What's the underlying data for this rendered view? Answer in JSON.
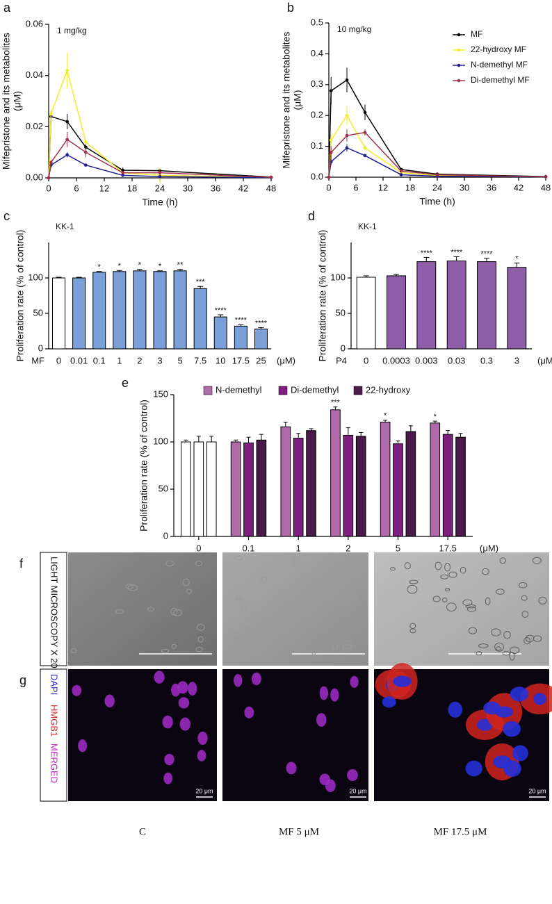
{
  "chart_data": [
    {
      "type": "line",
      "panel": "a",
      "annotation": "1 mg/kg",
      "ylabel": "Mifepristone and its metabolites",
      "ylabel_unit": "(μM)",
      "xlabel": "Time (h)",
      "x": [
        0,
        0.5,
        4,
        8,
        16,
        24,
        48
      ],
      "xlim": [
        0,
        48
      ],
      "xticks": [
        0,
        6,
        12,
        18,
        24,
        30,
        36,
        42,
        48
      ],
      "ylim": [
        0,
        0.06
      ],
      "yticks": [
        {
          "value": 0,
          "label": "0.00"
        },
        {
          "value": 0.02,
          "label": "0.02"
        },
        {
          "value": 0.04,
          "label": "0.04"
        },
        {
          "value": 0.06,
          "label": "0.06"
        }
      ],
      "series": [
        {
          "name": "MF",
          "color": "#000000",
          "values": [
            0,
            0.024,
            0.022,
            0.012,
            0.003,
            0.0028,
            0.0003
          ],
          "errors": [
            0,
            0.001,
            0.003,
            0.002,
            0.001,
            0.0005,
            0.0002
          ]
        },
        {
          "name": "22-hydroxy MF",
          "color": "#f2ec2a",
          "values": [
            0,
            0.025,
            0.042,
            0.014,
            0.002,
            0.001,
            0.0002
          ],
          "errors": [
            0,
            0.002,
            0.007,
            0.001,
            0.0005,
            0.003,
            0.0001
          ]
        },
        {
          "name": "N-demethyl MF",
          "color": "#1f1f8f",
          "values": [
            0,
            0.005,
            0.009,
            0.005,
            0.001,
            0.0005,
            0.0001
          ],
          "errors": [
            0,
            0.001,
            0.001,
            0.0005,
            0.0003,
            0.0002,
            0.0001
          ]
        },
        {
          "name": "Di-demethyl MF",
          "color": "#a0304a",
          "values": [
            0,
            0.006,
            0.015,
            0.01,
            0.002,
            0.002,
            0.0002
          ],
          "errors": [
            0,
            0.001,
            0.003,
            0.002,
            0.0005,
            0.001,
            0.0001
          ]
        }
      ]
    },
    {
      "type": "line",
      "panel": "b",
      "annotation": "10 mg/kg",
      "ylabel": "Mifepristone and its metabolites",
      "ylabel_unit": "(μM)",
      "xlabel": "Time (h)",
      "legend": true,
      "x": [
        0,
        0.5,
        4,
        8,
        16,
        24,
        48
      ],
      "xlim": [
        0,
        48
      ],
      "xticks": [
        0,
        6,
        12,
        18,
        24,
        30,
        36,
        42,
        48
      ],
      "ylim": [
        0,
        0.5
      ],
      "yticks": [
        {
          "value": 0,
          "label": "0.0"
        },
        0.1,
        0.2,
        0.3,
        0.4,
        0.5
      ],
      "series": [
        {
          "name": "MF",
          "color": "#000000",
          "values": [
            0,
            0.28,
            0.315,
            0.21,
            0.025,
            0.01,
            0.002
          ],
          "errors": [
            0,
            0.045,
            0.04,
            0.025,
            0.005,
            0.003,
            0.001
          ]
        },
        {
          "name": "22-hydroxy MF",
          "color": "#f2ec2a",
          "values": [
            0,
            0.12,
            0.2,
            0.095,
            0.015,
            0.005,
            0.001
          ],
          "errors": [
            0,
            0.02,
            0.03,
            0.008,
            0.003,
            0.002,
            0.001
          ]
        },
        {
          "name": "N-demethyl MF",
          "color": "#1f1f8f",
          "values": [
            0,
            0.05,
            0.095,
            0.07,
            0.008,
            0.003,
            0.001
          ],
          "errors": [
            0,
            0.01,
            0.012,
            0.005,
            0.002,
            0.001,
            0.0005
          ]
        },
        {
          "name": "Di-demethyl MF",
          "color": "#a0304a",
          "values": [
            0,
            0.08,
            0.135,
            0.145,
            0.02,
            0.008,
            0.001
          ],
          "errors": [
            0,
            0.02,
            0.02,
            0.01,
            0.004,
            0.002,
            0.001
          ]
        }
      ]
    },
    {
      "type": "bar",
      "panel": "c",
      "annotation": "KK-1",
      "ylabel": "Proliferation rate (% of control)",
      "x_prefix": "MF",
      "x_unit": "(μM)",
      "categories": [
        "0",
        "0.01",
        "0.1",
        "1",
        "2",
        "3",
        "5",
        "7.5",
        "10",
        "17.5",
        "25"
      ],
      "values": [
        100,
        100,
        108,
        109,
        110,
        109,
        110,
        85,
        45,
        32,
        28
      ],
      "errors": [
        1,
        1,
        1,
        1.5,
        2,
        1,
        2,
        3,
        3,
        2,
        2
      ],
      "significance": [
        null,
        null,
        "*",
        "*",
        "*",
        "*",
        "**",
        "***",
        "****",
        "****",
        "****"
      ],
      "color": "#7b9fd9",
      "control_color": "#ffffff",
      "ylim": [
        0,
        150
      ],
      "yticks": [
        0,
        50,
        100
      ]
    },
    {
      "type": "bar",
      "panel": "d",
      "annotation": "KK-1",
      "ylabel": "Proliferation rate (% of control)",
      "x_prefix": "P4",
      "x_unit": "(μM)",
      "categories": [
        "0",
        "0.0003",
        "0.003",
        "0.03",
        "0.3",
        "3"
      ],
      "values": [
        101,
        103,
        123,
        124,
        123,
        115
      ],
      "errors": [
        2,
        2,
        6,
        6,
        5,
        6
      ],
      "significance": [
        null,
        null,
        "****",
        "****",
        "****",
        "*"
      ],
      "color": "#8e5ea8",
      "control_color": "#ffffff",
      "ylim": [
        0,
        150
      ],
      "yticks": [
        0,
        50,
        100
      ]
    },
    {
      "type": "grouped_bar",
      "panel": "e",
      "ylabel": "Proliferation rate (% of control)",
      "x_unit": "(μM)",
      "legend": true,
      "categories": [
        "0",
        "0.1",
        "1",
        "2",
        "5",
        "17.5"
      ],
      "control_color": "#ffffff",
      "ylim": [
        0,
        150
      ],
      "yticks": [
        0,
        50,
        100,
        150
      ],
      "series": [
        {
          "name": "N-demethyl",
          "color": "#b06aaa",
          "values": [
            100,
            100,
            116,
            134,
            121,
            120
          ],
          "errors": [
            2,
            2,
            5,
            3,
            2,
            2
          ],
          "significance": [
            null,
            null,
            null,
            "***",
            "*",
            "*"
          ]
        },
        {
          "name": "Di-demethyl",
          "color": "#7d1f7f",
          "values": [
            100,
            99,
            104,
            107,
            98,
            108
          ],
          "errors": [
            6,
            6,
            5,
            8,
            3,
            4
          ],
          "significance": [
            null,
            null,
            null,
            null,
            null,
            null
          ]
        },
        {
          "name": "22-hydroxy",
          "color": "#4a1a4a",
          "values": [
            100,
            102,
            112,
            106,
            111,
            105
          ],
          "errors": [
            6,
            6,
            2,
            4,
            6,
            4
          ],
          "significance": [
            null,
            null,
            null,
            null,
            null,
            null
          ]
        }
      ]
    }
  ],
  "images": {
    "f": {
      "panel": "f",
      "label": "LIGHT MICROSCOPY X 20"
    },
    "g": {
      "panel": "g",
      "labels": [
        "DAPI",
        "HMGB1",
        "MERGED"
      ],
      "scale_bars": [
        "20 μm",
        "20 μm",
        "20 μm"
      ]
    },
    "captions": [
      "C",
      "MF 5 μM",
      "MF 17.5 μM"
    ]
  }
}
